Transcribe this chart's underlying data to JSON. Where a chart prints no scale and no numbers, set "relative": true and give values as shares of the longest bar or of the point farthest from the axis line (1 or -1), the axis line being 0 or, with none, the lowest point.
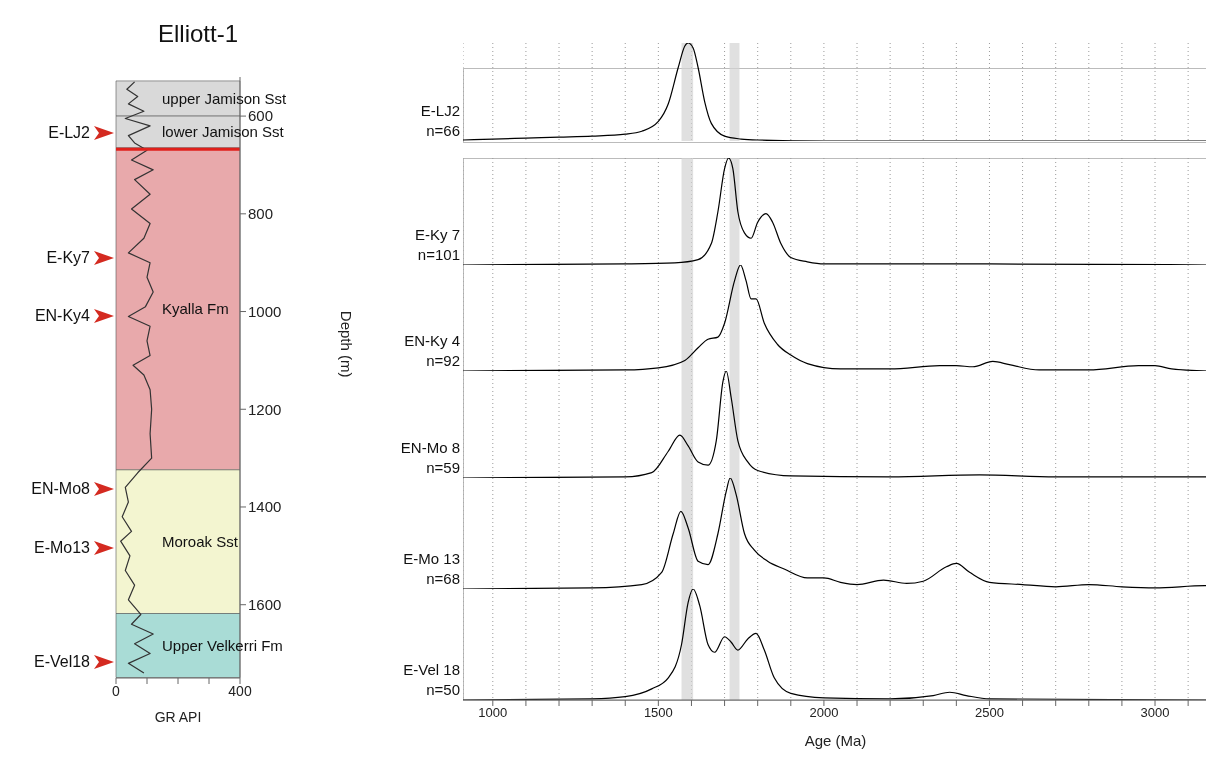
{
  "chart_data": [
    {
      "type": "line",
      "orientation": "horizontal",
      "title": "Elliott-1",
      "xlabel": "GR API",
      "ylabel": "Depth (m)",
      "color": "#333333",
      "x": [
        530,
        545,
        560,
        575,
        590,
        605,
        620,
        640,
        655,
        670,
        690,
        710,
        730,
        760,
        790,
        820,
        850,
        880,
        900,
        930,
        960,
        990,
        1010,
        1030,
        1060,
        1090,
        1110,
        1130,
        1160,
        1200,
        1250,
        1300,
        1330,
        1360,
        1390,
        1420,
        1450,
        1470,
        1500,
        1530,
        1560,
        1590,
        1620,
        1640,
        1660,
        1680,
        1700,
        1720,
        1740
      ],
      "values": [
        60,
        35,
        70,
        40,
        90,
        30,
        110,
        40,
        60,
        100,
        50,
        120,
        60,
        110,
        50,
        110,
        90,
        40,
        110,
        100,
        120,
        95,
        40,
        110,
        100,
        110,
        55,
        90,
        110,
        115,
        110,
        115,
        70,
        30,
        40,
        20,
        50,
        15,
        45,
        30,
        60,
        40,
        80,
        50,
        120,
        60,
        110,
        40,
        90
      ],
      "xlim": [
        0,
        400
      ],
      "xticks": [
        0,
        {
          "value": 100,
          "label": null
        },
        {
          "value": 200,
          "label": null
        },
        {
          "value": 300,
          "label": null
        },
        400
      ],
      "ylim": [
        1750,
        520
      ],
      "yticks": [
        600,
        800,
        1000,
        1200,
        1400,
        1600
      ],
      "bands": [
        {
          "axis": "y",
          "from": 528,
          "to": 600,
          "label": "upper Jamison Sst",
          "color": "#d9d9d9"
        },
        {
          "axis": "y",
          "from": 600,
          "to": 665,
          "label": "lower Jamison Sst",
          "color": "#d9d9d9"
        },
        {
          "axis": "y",
          "from": 665,
          "to": 1324,
          "label": "Kyalla Fm",
          "color": "#e8a9ab"
        },
        {
          "axis": "y",
          "from": 1324,
          "to": 1618,
          "label": "Moroak Sst",
          "color": "#f3f5d0"
        },
        {
          "axis": "y",
          "from": 1618,
          "to": 1749,
          "label": "Upper Velkerri Fm",
          "color": "#a9dcd6"
        }
      ],
      "ref_lines": [
        {
          "axis": "y",
          "value": 668,
          "color": "#e0201b"
        }
      ],
      "annotations": [
        "E-LJ2",
        "E-Ky7",
        "EN-Ky4",
        "EN-Mo8",
        "E-Mo13",
        "E-Vel18"
      ]
    },
    {
      "type": "line",
      "relative": true,
      "title": "E-LJ2",
      "subtitle": "n=66",
      "color": "#000000",
      "grid": "x",
      "tick_labels": false,
      "x": [
        910,
        1000,
        1100,
        1200,
        1300,
        1400,
        1450,
        1500,
        1530,
        1560,
        1580,
        1590,
        1605,
        1620,
        1640,
        1660,
        1700,
        1750,
        1800,
        2000,
        2500,
        3160
      ],
      "values": [
        0.01,
        0.02,
        0.03,
        0.04,
        0.05,
        0.07,
        0.1,
        0.2,
        0.38,
        0.75,
        0.97,
        1,
        0.95,
        0.75,
        0.4,
        0.18,
        0.05,
        0.02,
        0.01,
        0,
        0,
        0
      ],
      "xlim": [
        910,
        3160
      ],
      "xticks": [
        1000,
        {
          "value": 1100,
          "label": null
        },
        {
          "value": 1200,
          "label": null
        },
        {
          "value": 1300,
          "label": null
        },
        {
          "value": 1400,
          "label": null
        },
        1500,
        {
          "value": 1600,
          "label": null
        },
        {
          "value": 1700,
          "label": null
        },
        {
          "value": 1800,
          "label": null
        },
        {
          "value": 1900,
          "label": null
        },
        2000,
        {
          "value": 2100,
          "label": null
        },
        {
          "value": 2200,
          "label": null
        },
        {
          "value": 2300,
          "label": null
        },
        {
          "value": 2400,
          "label": null
        },
        2500,
        {
          "value": 2600,
          "label": null
        },
        {
          "value": 2700,
          "label": null
        },
        {
          "value": 2800,
          "label": null
        },
        {
          "value": 2900,
          "label": null
        },
        3000,
        {
          "value": 3100,
          "label": null
        }
      ],
      "bands": [
        {
          "axis": "x",
          "from": 1570,
          "to": 1605,
          "color": "#d3d3d3"
        },
        {
          "axis": "x",
          "from": 1715,
          "to": 1745,
          "color": "#d3d3d3"
        }
      ]
    },
    {
      "type": "line",
      "relative": true,
      "title": "E-Ky 7",
      "subtitle": "n=101",
      "color": "#000000",
      "grid": "x",
      "tick_labels": false,
      "x": [
        910,
        1400,
        1550,
        1620,
        1660,
        1680,
        1700,
        1712,
        1725,
        1740,
        1760,
        1780,
        1800,
        1825,
        1845,
        1870,
        1900,
        1950,
        2000,
        2500,
        3160
      ],
      "values": [
        0,
        0.01,
        0.02,
        0.05,
        0.2,
        0.5,
        0.9,
        1,
        0.9,
        0.5,
        0.3,
        0.25,
        0.4,
        0.48,
        0.4,
        0.2,
        0.07,
        0.03,
        0.01,
        0.01,
        0
      ],
      "xlim": [
        910,
        3160
      ],
      "xticks": [
        1000,
        {
          "value": 1100,
          "label": null
        },
        {
          "value": 1200,
          "label": null
        },
        {
          "value": 1300,
          "label": null
        },
        {
          "value": 1400,
          "label": null
        },
        1500,
        {
          "value": 1600,
          "label": null
        },
        {
          "value": 1700,
          "label": null
        },
        {
          "value": 1800,
          "label": null
        },
        {
          "value": 1900,
          "label": null
        },
        2000,
        {
          "value": 2100,
          "label": null
        },
        {
          "value": 2200,
          "label": null
        },
        {
          "value": 2300,
          "label": null
        },
        {
          "value": 2400,
          "label": null
        },
        2500,
        {
          "value": 2600,
          "label": null
        },
        {
          "value": 2700,
          "label": null
        },
        {
          "value": 2800,
          "label": null
        },
        {
          "value": 2900,
          "label": null
        },
        3000,
        {
          "value": 3100,
          "label": null
        }
      ],
      "bands": [
        {
          "axis": "x",
          "from": 1570,
          "to": 1605,
          "color": "#d3d3d3"
        },
        {
          "axis": "x",
          "from": 1715,
          "to": 1745,
          "color": "#d3d3d3"
        }
      ]
    },
    {
      "type": "line",
      "relative": true,
      "title": "EN-Ky 4",
      "subtitle": "n=92",
      "color": "#000000",
      "grid": "x",
      "tick_labels": false,
      "x": [
        910,
        1400,
        1500,
        1580,
        1620,
        1650,
        1680,
        1700,
        1730,
        1748,
        1765,
        1780,
        1795,
        1820,
        1860,
        1900,
        1950,
        2050,
        2200,
        2350,
        2400,
        2450,
        2510,
        2560,
        2650,
        2800,
        2950,
        3000,
        3050,
        3160
      ],
      "values": [
        0,
        0.01,
        0.03,
        0.1,
        0.22,
        0.3,
        0.32,
        0.45,
        0.85,
        1,
        0.85,
        0.68,
        0.68,
        0.45,
        0.25,
        0.15,
        0.07,
        0.02,
        0.02,
        0.05,
        0.05,
        0.04,
        0.09,
        0.06,
        0.01,
        0.01,
        0.05,
        0.05,
        0.02,
        0
      ],
      "xlim": [
        910,
        3160
      ],
      "xticks": [
        1000,
        {
          "value": 1100,
          "label": null
        },
        {
          "value": 1200,
          "label": null
        },
        {
          "value": 1300,
          "label": null
        },
        {
          "value": 1400,
          "label": null
        },
        1500,
        {
          "value": 1600,
          "label": null
        },
        {
          "value": 1700,
          "label": null
        },
        {
          "value": 1800,
          "label": null
        },
        {
          "value": 1900,
          "label": null
        },
        2000,
        {
          "value": 2100,
          "label": null
        },
        {
          "value": 2200,
          "label": null
        },
        {
          "value": 2300,
          "label": null
        },
        {
          "value": 2400,
          "label": null
        },
        2500,
        {
          "value": 2600,
          "label": null
        },
        {
          "value": 2700,
          "label": null
        },
        {
          "value": 2800,
          "label": null
        },
        {
          "value": 2900,
          "label": null
        },
        3000,
        {
          "value": 3100,
          "label": null
        }
      ],
      "bands": [
        {
          "axis": "x",
          "from": 1570,
          "to": 1605,
          "color": "#d3d3d3"
        },
        {
          "axis": "x",
          "from": 1715,
          "to": 1745,
          "color": "#d3d3d3"
        }
      ]
    },
    {
      "type": "line",
      "relative": true,
      "title": "EN-Mo 8",
      "subtitle": "n=59",
      "color": "#000000",
      "grid": "x",
      "tick_labels": false,
      "x": [
        910,
        1400,
        1480,
        1530,
        1565,
        1590,
        1620,
        1650,
        1675,
        1695,
        1705,
        1720,
        1740,
        1770,
        1800,
        1900,
        2200,
        2470,
        2700,
        3160
      ],
      "values": [
        0,
        0.01,
        0.05,
        0.25,
        0.4,
        0.3,
        0.15,
        0.12,
        0.35,
        0.9,
        1,
        0.75,
        0.35,
        0.15,
        0.07,
        0.02,
        0.01,
        0.03,
        0.01,
        0.01
      ],
      "xlim": [
        910,
        3160
      ],
      "xticks": [
        1000,
        {
          "value": 1100,
          "label": null
        },
        {
          "value": 1200,
          "label": null
        },
        {
          "value": 1300,
          "label": null
        },
        {
          "value": 1400,
          "label": null
        },
        1500,
        {
          "value": 1600,
          "label": null
        },
        {
          "value": 1700,
          "label": null
        },
        {
          "value": 1800,
          "label": null
        },
        {
          "value": 1900,
          "label": null
        },
        2000,
        {
          "value": 2100,
          "label": null
        },
        {
          "value": 2200,
          "label": null
        },
        {
          "value": 2300,
          "label": null
        },
        {
          "value": 2400,
          "label": null
        },
        2500,
        {
          "value": 2600,
          "label": null
        },
        {
          "value": 2700,
          "label": null
        },
        {
          "value": 2800,
          "label": null
        },
        {
          "value": 2900,
          "label": null
        },
        3000,
        {
          "value": 3100,
          "label": null
        }
      ],
      "bands": [
        {
          "axis": "x",
          "from": 1570,
          "to": 1605,
          "color": "#d3d3d3"
        },
        {
          "axis": "x",
          "from": 1715,
          "to": 1745,
          "color": "#d3d3d3"
        }
      ]
    },
    {
      "type": "line",
      "relative": true,
      "title": "E-Mo 13",
      "subtitle": "n=68",
      "color": "#000000",
      "grid": "x",
      "tick_labels": false,
      "x": [
        910,
        1300,
        1450,
        1510,
        1545,
        1568,
        1590,
        1620,
        1650,
        1680,
        1705,
        1717,
        1735,
        1760,
        1790,
        1830,
        1880,
        1950,
        2000,
        2050,
        2100,
        2180,
        2250,
        2300,
        2370,
        2400,
        2440,
        2500,
        2600,
        2700,
        2800,
        2900,
        3000,
        3150,
        3160
      ],
      "values": [
        0,
        0.01,
        0.04,
        0.15,
        0.5,
        0.7,
        0.55,
        0.25,
        0.22,
        0.5,
        0.88,
        1,
        0.85,
        0.5,
        0.35,
        0.25,
        0.18,
        0.1,
        0.1,
        0.06,
        0.04,
        0.08,
        0.05,
        0.07,
        0.2,
        0.23,
        0.15,
        0.06,
        0.04,
        0.02,
        0.04,
        0.02,
        0.01,
        0.03,
        0.03
      ],
      "xlim": [
        910,
        3160
      ],
      "xticks": [
        1000,
        {
          "value": 1100,
          "label": null
        },
        {
          "value": 1200,
          "label": null
        },
        {
          "value": 1300,
          "label": null
        },
        {
          "value": 1400,
          "label": null
        },
        1500,
        {
          "value": 1600,
          "label": null
        },
        {
          "value": 1700,
          "label": null
        },
        {
          "value": 1800,
          "label": null
        },
        {
          "value": 1900,
          "label": null
        },
        2000,
        {
          "value": 2100,
          "label": null
        },
        {
          "value": 2200,
          "label": null
        },
        {
          "value": 2300,
          "label": null
        },
        {
          "value": 2400,
          "label": null
        },
        2500,
        {
          "value": 2600,
          "label": null
        },
        {
          "value": 2700,
          "label": null
        },
        {
          "value": 2800,
          "label": null
        },
        {
          "value": 2900,
          "label": null
        },
        3000,
        {
          "value": 3100,
          "label": null
        }
      ],
      "bands": [
        {
          "axis": "x",
          "from": 1570,
          "to": 1605,
          "color": "#d3d3d3"
        },
        {
          "axis": "x",
          "from": 1715,
          "to": 1745,
          "color": "#d3d3d3"
        }
      ]
    },
    {
      "type": "line",
      "relative": true,
      "title": "E-Vel 18",
      "subtitle": "n=50",
      "xlabel": "Age (Ma)",
      "color": "#000000",
      "grid": "x",
      "tick_labels": "x",
      "x": [
        910,
        1300,
        1400,
        1480,
        1530,
        1570,
        1590,
        1605,
        1625,
        1650,
        1670,
        1700,
        1720,
        1740,
        1770,
        1795,
        1820,
        1850,
        1900,
        2000,
        2200,
        2330,
        2380,
        2430,
        2500,
        3160
      ],
      "values": [
        0,
        0.01,
        0.03,
        0.1,
        0.2,
        0.5,
        0.88,
        1,
        0.85,
        0.5,
        0.43,
        0.57,
        0.52,
        0.45,
        0.55,
        0.6,
        0.45,
        0.2,
        0.06,
        0.02,
        0.01,
        0.04,
        0.07,
        0.04,
        0.01,
        0
      ],
      "xlim": [
        910,
        3160
      ],
      "xticks": [
        1000,
        {
          "value": 1100,
          "label": null
        },
        {
          "value": 1200,
          "label": null
        },
        {
          "value": 1300,
          "label": null
        },
        {
          "value": 1400,
          "label": null
        },
        1500,
        {
          "value": 1600,
          "label": null
        },
        {
          "value": 1700,
          "label": null
        },
        {
          "value": 1800,
          "label": null
        },
        {
          "value": 1900,
          "label": null
        },
        2000,
        {
          "value": 2100,
          "label": null
        },
        {
          "value": 2200,
          "label": null
        },
        {
          "value": 2300,
          "label": null
        },
        {
          "value": 2400,
          "label": null
        },
        2500,
        {
          "value": 2600,
          "label": null
        },
        {
          "value": 2700,
          "label": null
        },
        {
          "value": 2800,
          "label": null
        },
        {
          "value": 2900,
          "label": null
        },
        3000,
        {
          "value": 3100,
          "label": null
        }
      ],
      "bands": [
        {
          "axis": "x",
          "from": 1570,
          "to": 1605,
          "color": "#d3d3d3"
        },
        {
          "axis": "x",
          "from": 1715,
          "to": 1745,
          "color": "#d3d3d3"
        }
      ]
    }
  ]
}
